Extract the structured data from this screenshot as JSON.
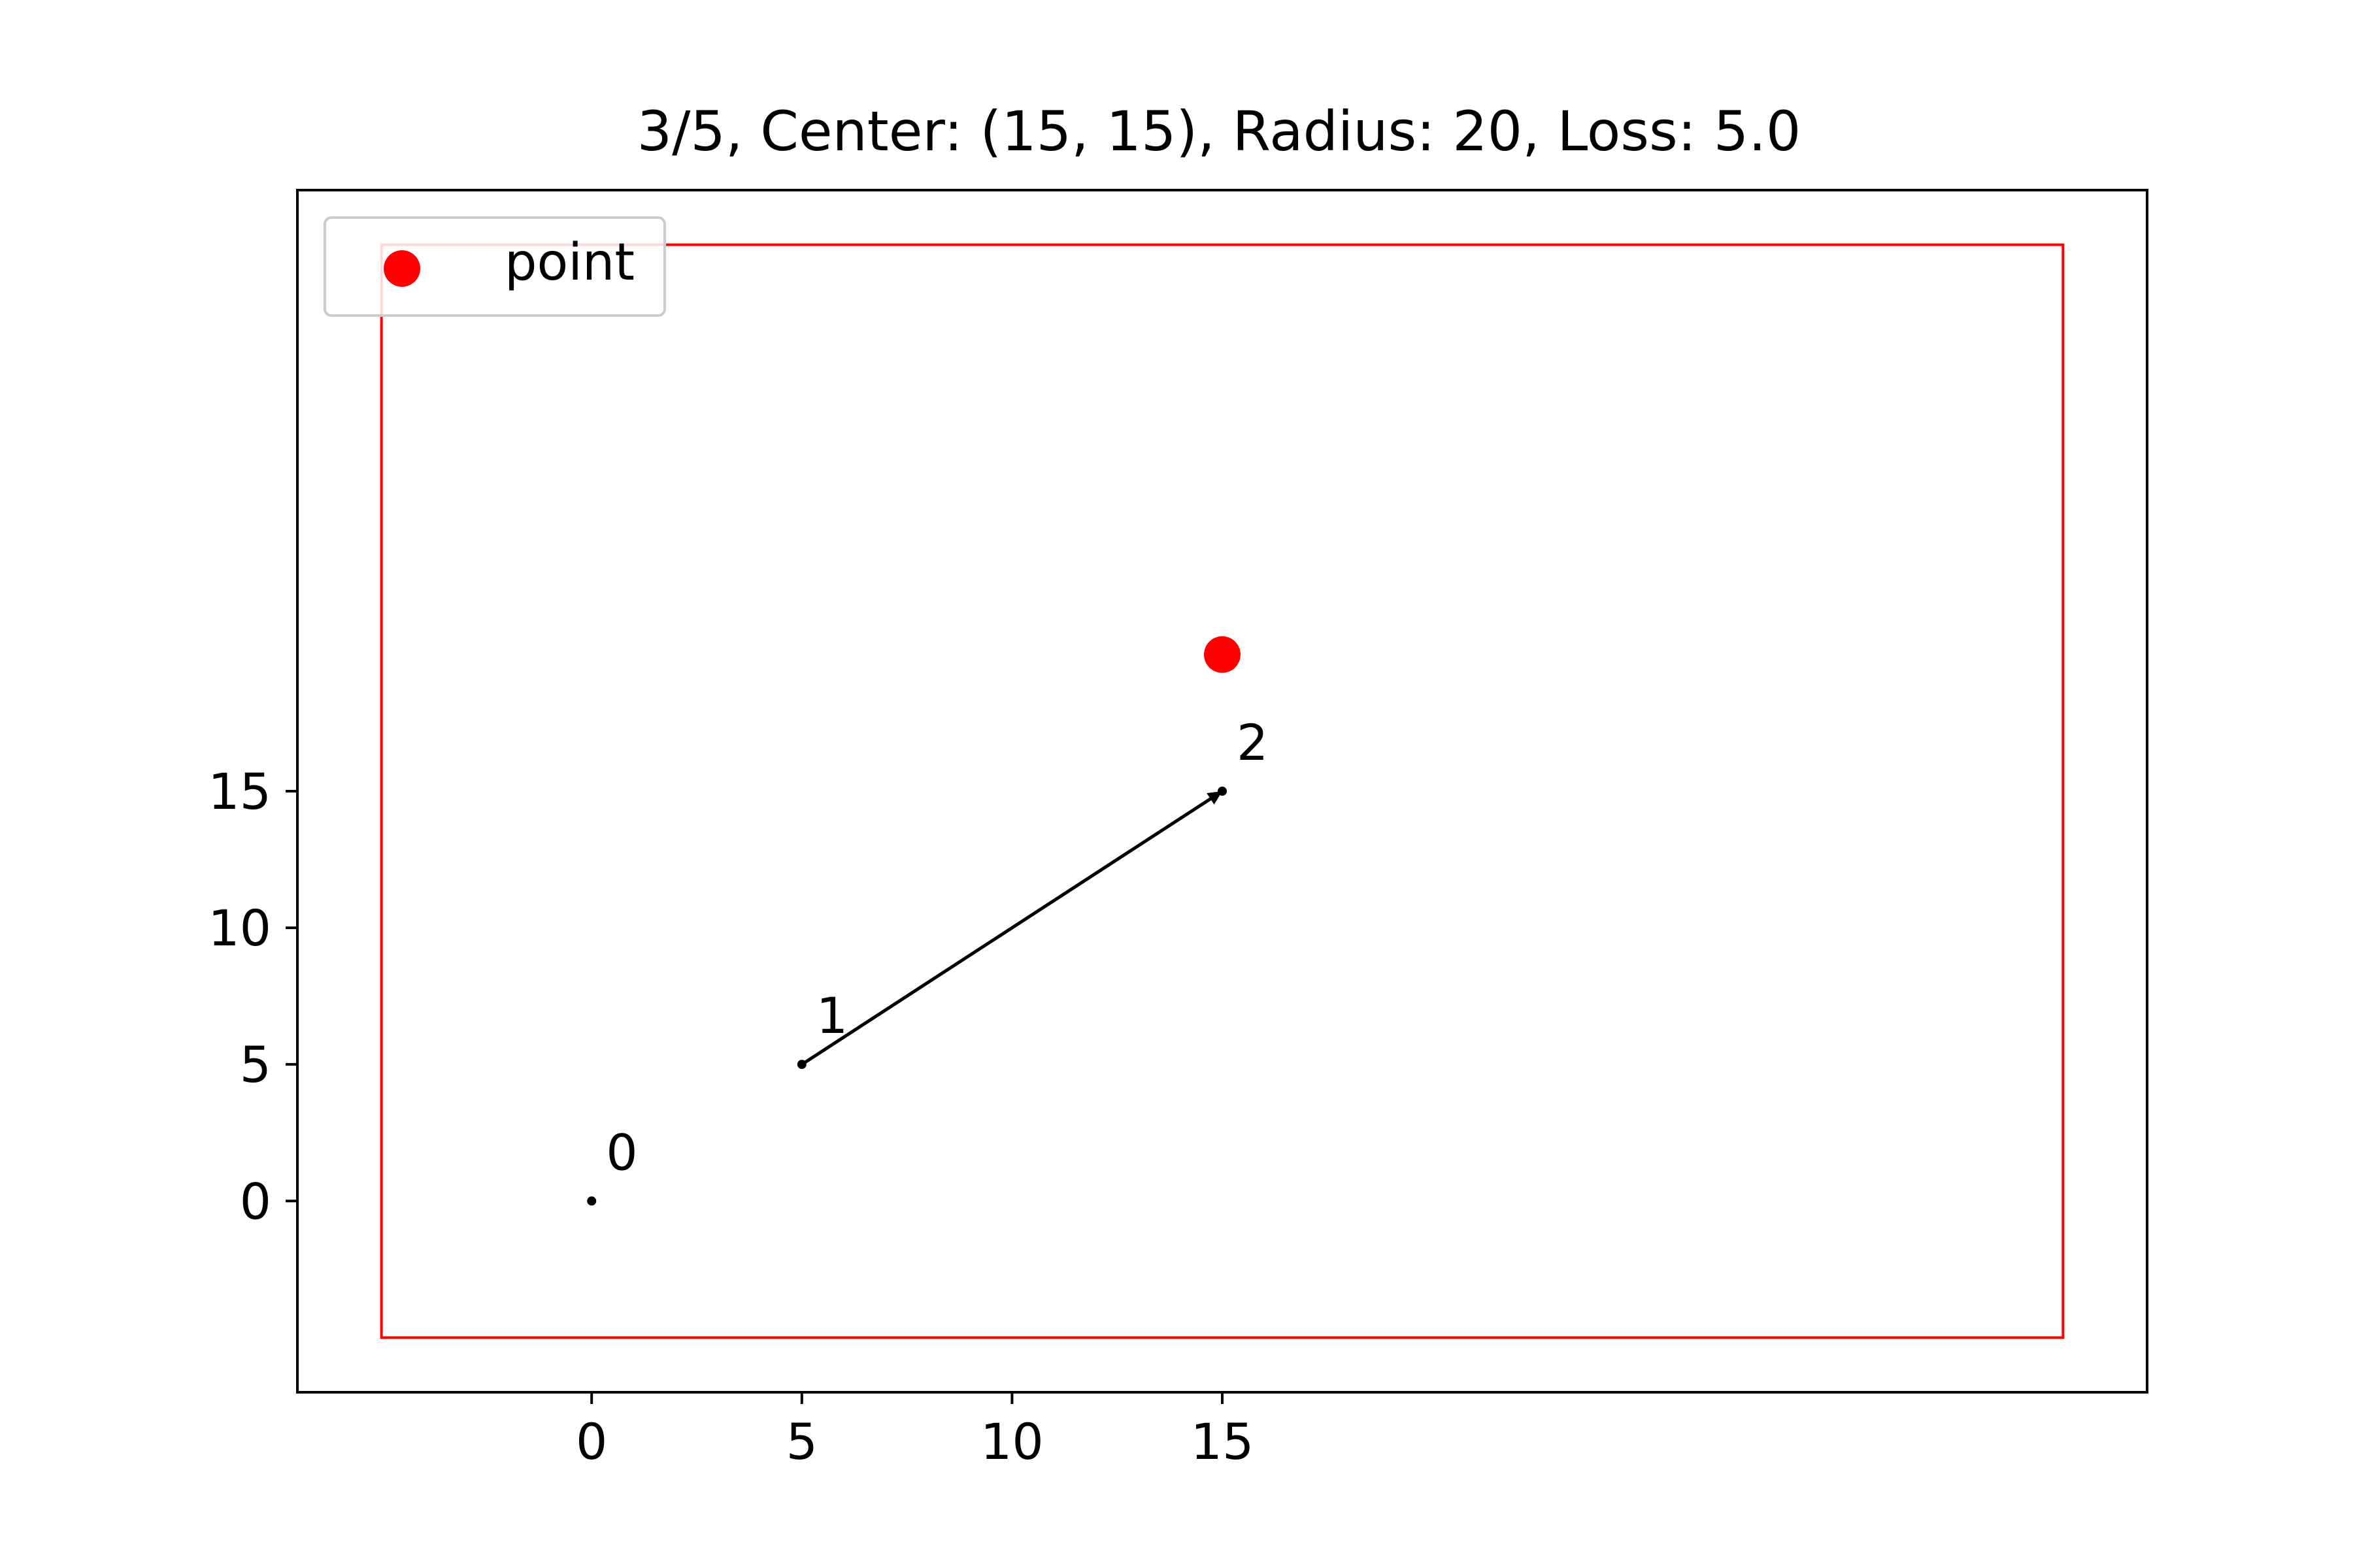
{
  "chart_data": {
    "type": "scatter",
    "title": "3/5, Center: (15, 15), Radius: 20, Loss: 5.0",
    "xlabel": "",
    "ylabel": "",
    "xlim": [
      -7,
      37
    ],
    "ylim": [
      -7,
      37
    ],
    "x_ticks": [
      0,
      5,
      10,
      15
    ],
    "y_ticks": [
      0,
      5,
      10,
      15
    ],
    "grid": false,
    "legend": {
      "position": "top-left",
      "entries": [
        {
          "label": "point",
          "color": "#ff0000",
          "marker": "circle"
        }
      ]
    },
    "path": [
      {
        "label": "0",
        "x": 0,
        "y": 0
      },
      {
        "label": "1",
        "x": 5,
        "y": 5
      },
      {
        "label": "2",
        "x": 15,
        "y": 15
      }
    ],
    "arrows": [
      {
        "from": 1,
        "to": 2
      }
    ],
    "point": {
      "name": "point",
      "x": 15,
      "y": 20,
      "color": "#ff0000"
    },
    "boundary": {
      "color": "#ff0000",
      "x_min": -5,
      "x_max": 35,
      "y_min": -5,
      "y_max": 35
    }
  }
}
